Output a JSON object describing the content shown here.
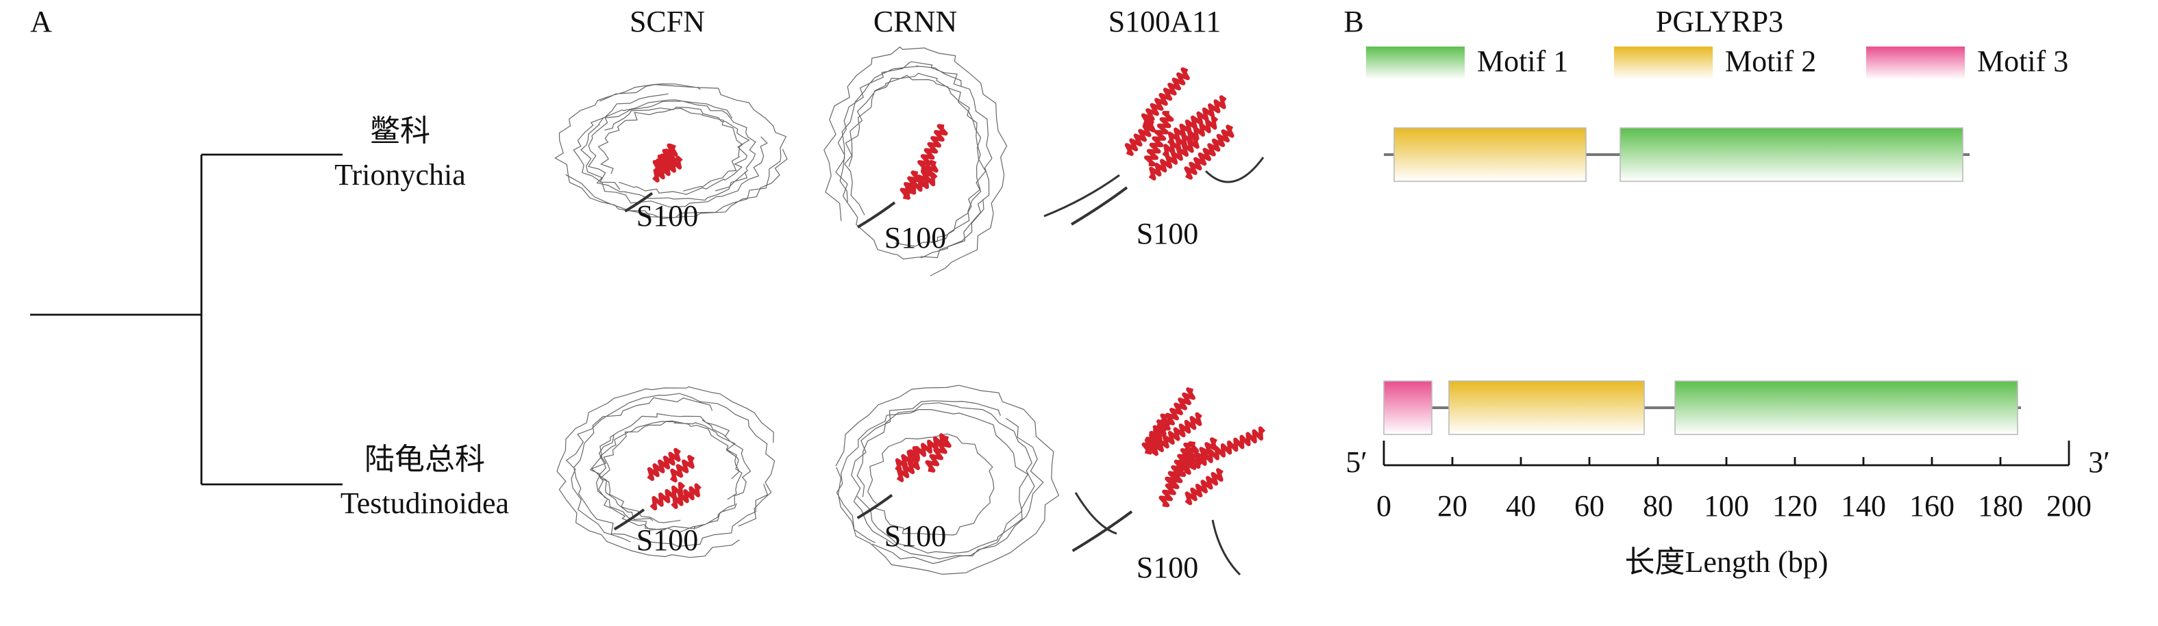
{
  "panel_a": {
    "label": "A",
    "columns": [
      "SCFN",
      "CRNN",
      "S100A11"
    ],
    "taxa": [
      {
        "name_zh": "鳖科",
        "name_latin": "Trionychia"
      },
      {
        "name_zh": "陆龟总科",
        "name_latin": "Testudinoidea"
      }
    ],
    "structure_labels": [
      [
        "S100",
        "S100",
        "S100"
      ],
      [
        "S100",
        "S100",
        "S100"
      ]
    ]
  },
  "chart_data": {
    "type": "motif",
    "panel_label": "B",
    "title": "PGLYRP3",
    "series": [
      {
        "name": "Motif 1",
        "color": "#5dbf4e"
      },
      {
        "name": "Motif 2",
        "color": "#e8b923"
      },
      {
        "name": "Motif 3",
        "color": "#e94f8f"
      }
    ],
    "tracks": [
      {
        "length": 171,
        "motifs": [
          {
            "series": 1,
            "start": 3,
            "end": 59
          },
          {
            "series": 0,
            "start": 69,
            "end": 169
          }
        ]
      },
      {
        "length": 186,
        "motifs": [
          {
            "series": 2,
            "start": 0,
            "end": 14
          },
          {
            "series": 1,
            "start": 19,
            "end": 76
          },
          {
            "series": 0,
            "start": 85,
            "end": 185
          }
        ]
      }
    ],
    "xlim": [
      0,
      200
    ],
    "xticks": [
      0,
      20,
      40,
      60,
      80,
      100,
      120,
      140,
      160,
      180,
      200
    ],
    "xlabel": "长度Length (bp)",
    "end_labels": [
      "5′",
      "3′"
    ]
  }
}
